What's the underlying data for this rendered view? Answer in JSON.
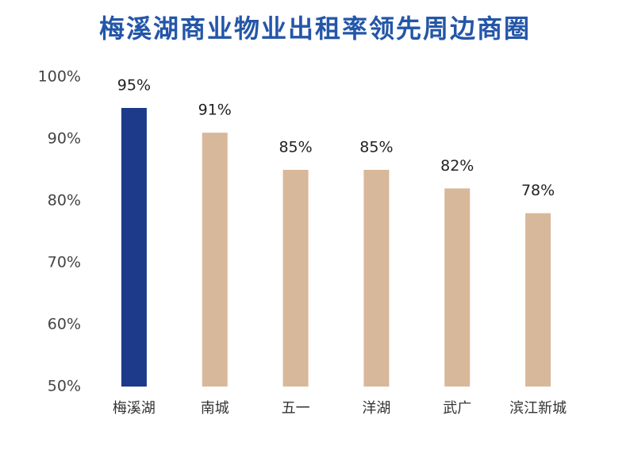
{
  "chart_data": {
    "type": "bar",
    "title": "梅溪湖商业物业出租率领先周边商圈",
    "categories": [
      "梅溪湖",
      "南城",
      "五一",
      "洋湖",
      "武广",
      "滨江新城"
    ],
    "values": [
      95,
      91,
      85,
      85,
      82,
      78
    ],
    "value_labels": [
      "95%",
      "91%",
      "85%",
      "85%",
      "82%",
      "78%"
    ],
    "colors": [
      "#1d3a8a",
      "#d8b89a",
      "#d8b89a",
      "#d8b89a",
      "#d8b89a",
      "#d8b89a"
    ],
    "ylim": [
      50,
      100
    ],
    "yticks": [
      {
        "value": 50,
        "label": "50%"
      },
      {
        "value": 60,
        "label": "60%"
      },
      {
        "value": 70,
        "label": "70%"
      },
      {
        "value": 80,
        "label": "80%"
      },
      {
        "value": 90,
        "label": "90%"
      },
      {
        "value": 100,
        "label": "100%"
      }
    ],
    "grid": false
  }
}
